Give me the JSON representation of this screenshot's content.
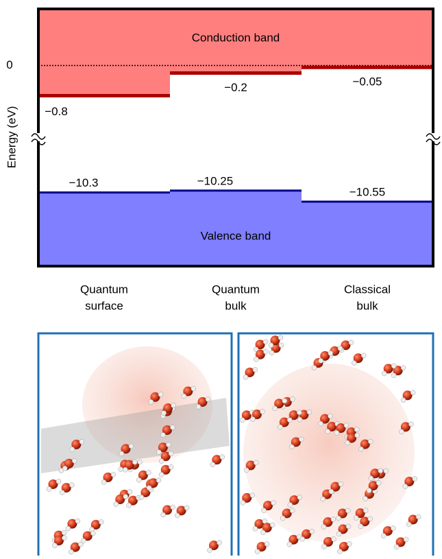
{
  "chart_data": {
    "type": "band-diagram",
    "ylabel": "Energy (eV)",
    "categories": [
      [
        "Quantum",
        "surface"
      ],
      [
        "Quantum",
        "bulk"
      ],
      [
        "Classical",
        "bulk"
      ]
    ],
    "ylim": [
      -12.3,
      1.5
    ],
    "ybreak": [
      -8.8,
      -1.9
    ],
    "yticks": [
      0
    ],
    "annotations": [
      "Conduction band",
      "Valence band"
    ],
    "series": [
      {
        "name": "Conduction band",
        "color": "#ff7f7f",
        "line_color": "#aa0000",
        "values": [
          -0.8,
          -0.2,
          -0.05
        ],
        "value_labels": [
          "−0.8",
          "−0.2",
          "−0.05"
        ]
      },
      {
        "name": "Valence band",
        "color": "#7f7fff",
        "line_color": "#00008b",
        "values": [
          -10.3,
          -10.25,
          -10.55
        ],
        "value_labels": [
          "−10.3",
          "−10.25",
          "−10.55"
        ]
      }
    ]
  }
}
